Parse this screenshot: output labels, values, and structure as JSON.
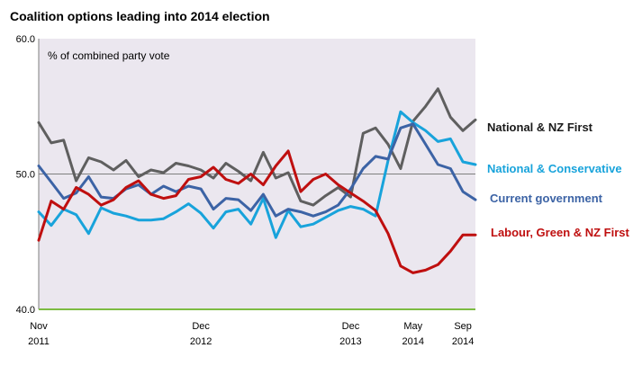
{
  "chart_data": {
    "type": "line",
    "title": "Coalition options leading into 2014 election",
    "annotation": "% of combined party vote",
    "ylim": [
      40,
      60
    ],
    "yticks": [
      "40.0",
      "50.0",
      "60.0"
    ],
    "xlim": [
      "2011-11",
      "2014-10"
    ],
    "xticks": [
      {
        "line1": "Nov",
        "line2": "2011",
        "x": "2011-11"
      },
      {
        "line1": "Dec",
        "line2": "2012",
        "x": "2012-12"
      },
      {
        "line1": "Dec",
        "line2": "2013",
        "x": "2013-12"
      },
      {
        "line1": "May",
        "line2": "2014",
        "x": "2014-05"
      },
      {
        "line1": "Sep",
        "line2": "2014",
        "x": "2014-09"
      }
    ],
    "grid": false,
    "legend_placement": "right",
    "x": [
      "2011-11",
      "2011-12",
      "2012-01",
      "2012-02",
      "2012-03",
      "2012-04",
      "2012-05",
      "2012-06",
      "2012-07",
      "2012-08",
      "2012-09",
      "2012-10",
      "2012-11",
      "2012-12",
      "2013-01",
      "2013-02",
      "2013-03",
      "2013-04",
      "2013-05",
      "2013-06",
      "2013-07",
      "2013-08",
      "2013-09",
      "2013-10",
      "2013-11",
      "2013-12",
      "2014-01",
      "2014-02",
      "2014-03",
      "2014-04",
      "2014-05",
      "2014-06",
      "2014-07",
      "2014-08",
      "2014-09",
      "2014-10"
    ],
    "series": [
      {
        "name": "National & NZ First",
        "color": "#5f5f5f",
        "values": [
          53.8,
          52.3,
          52.5,
          49.5,
          51.2,
          50.9,
          50.3,
          51.0,
          49.8,
          50.3,
          50.1,
          50.8,
          50.6,
          50.3,
          49.7,
          50.8,
          50.2,
          49.5,
          51.6,
          49.7,
          50.1,
          48.0,
          47.7,
          48.4,
          49.0,
          48.3,
          53.0,
          53.4,
          52.2,
          50.4,
          53.9,
          55.0,
          56.3,
          54.2,
          53.2,
          54.0
        ]
      },
      {
        "name": "National & Conservative",
        "color": "#18a3db",
        "values": [
          47.2,
          46.2,
          47.4,
          47.0,
          45.6,
          47.5,
          47.1,
          46.9,
          46.6,
          46.6,
          46.7,
          47.2,
          47.8,
          47.1,
          46.0,
          47.2,
          47.4,
          46.3,
          48.2,
          45.3,
          47.3,
          46.1,
          46.3,
          46.8,
          47.3,
          47.6,
          47.4,
          46.9,
          51.0,
          54.6,
          53.8,
          53.2,
          52.4,
          52.6,
          50.9,
          50.7
        ]
      },
      {
        "name": "Current government",
        "color": "#3c63a5",
        "values": [
          50.6,
          49.4,
          48.2,
          48.6,
          49.8,
          48.3,
          48.2,
          48.9,
          49.2,
          48.5,
          49.1,
          48.7,
          49.1,
          48.9,
          47.4,
          48.2,
          48.1,
          47.3,
          48.5,
          46.9,
          47.4,
          47.2,
          46.9,
          47.2,
          47.7,
          48.9,
          50.4,
          51.3,
          51.1,
          53.4,
          53.7,
          52.2,
          50.7,
          50.4,
          48.7,
          48.1
        ]
      },
      {
        "name": "Labour, Green & NZ First",
        "color": "#bf0f0f",
        "values": [
          45.1,
          48.0,
          47.4,
          49.0,
          48.5,
          47.7,
          48.1,
          49.0,
          49.5,
          48.5,
          48.2,
          48.4,
          49.6,
          49.8,
          50.5,
          49.6,
          49.3,
          50.0,
          49.2,
          50.6,
          51.7,
          48.7,
          49.6,
          50.0,
          49.2,
          48.6,
          48.0,
          47.3,
          45.6,
          43.2,
          42.7,
          42.9,
          43.3,
          44.3,
          45.5,
          45.5
        ]
      }
    ]
  }
}
